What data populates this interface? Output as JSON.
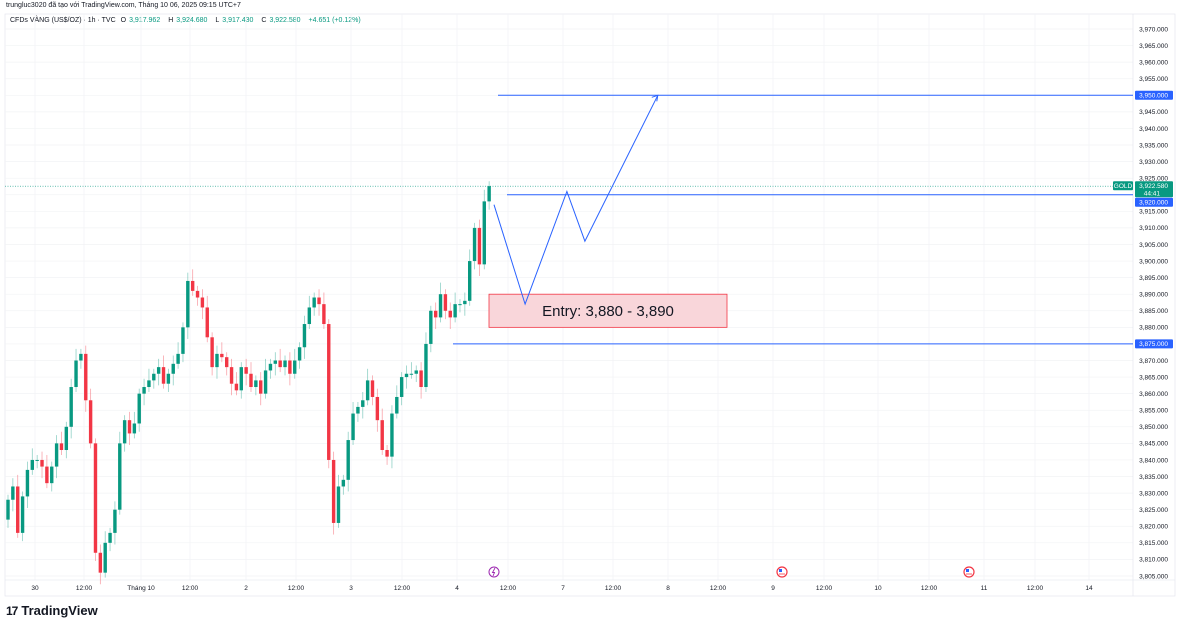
{
  "header": {
    "credit": "trungluc3020 đã tạo với TradingView.com, Tháng 10 06, 2025 09:15 UTC+7",
    "symbol": "CFDs VÀNG (US$/OZ) · 1h · TVC",
    "open_label": "O",
    "open": "3,917.962",
    "high_label": "H",
    "high": "3,924.680",
    "low_label": "L",
    "low": "3,917.430",
    "close_label": "C",
    "close": "3,922.580",
    "change": "+4.651 (+0.12%)"
  },
  "colors": {
    "up": "#089981",
    "down": "#f23645",
    "drawing": "#2962ff",
    "entry_fill": "#f9d6da",
    "entry_border": "#f23645"
  },
  "chart_data": {
    "type": "candlestick",
    "ylim": [
      3803,
      3973
    ],
    "y_ticks": [
      "3,805.000",
      "3,810.000",
      "3,815.000",
      "3,820.000",
      "3,825.000",
      "3,830.000",
      "3,835.000",
      "3,840.000",
      "3,845.000",
      "3,850.000",
      "3,855.000",
      "3,860.000",
      "3,865.000",
      "3,870.000",
      "3,875.000",
      "3,880.000",
      "3,885.000",
      "3,890.000",
      "3,895.000",
      "3,900.000",
      "3,905.000",
      "3,910.000",
      "3,915.000",
      "3,920.000",
      "3,925.000",
      "3,930.000",
      "3,935.000",
      "3,940.000",
      "3,945.000",
      "3,950.000",
      "3,955.000",
      "3,960.000",
      "3,965.000",
      "3,970.000"
    ],
    "x_ticks": [
      "30",
      "12:00",
      "Tháng 10",
      "12:00",
      "2",
      "12:00",
      "3",
      "12:00",
      "4",
      "12:00",
      "7",
      "12:00",
      "8",
      "12:00",
      "9",
      "12:00",
      "10",
      "12:00",
      "11",
      "12:00",
      "14"
    ],
    "first_open": 3822,
    "closes": [
      3828,
      3832,
      3818,
      3829,
      3837,
      3840,
      3840,
      3838,
      3833,
      3838,
      3845,
      3843,
      3850,
      3862,
      3870,
      3872,
      3858,
      3845,
      3812,
      3806,
      3815,
      3818,
      3825,
      3845,
      3852,
      3848,
      3851,
      3860,
      3862,
      3864,
      3866,
      3868,
      3863,
      3866,
      3869,
      3872,
      3880,
      3894,
      3891,
      3889,
      3886,
      3877,
      3868,
      3872,
      3871,
      3868,
      3863,
      3861,
      3868,
      3866,
      3862,
      3864,
      3860,
      3867,
      3869,
      3870,
      3868,
      3870,
      3866,
      3870,
      3874,
      3881,
      3886,
      3889,
      3887,
      3881,
      3840,
      3821,
      3832,
      3834,
      3846,
      3854,
      3856,
      3858,
      3864,
      3859,
      3852,
      3843,
      3841,
      3854,
      3859,
      3865,
      3866,
      3866,
      3867,
      3862,
      3875,
      3885,
      3883,
      3890,
      3885,
      3883,
      3887,
      3887,
      3888,
      3900,
      3910,
      3899,
      3918,
      3922.58
    ],
    "last_price": "3,922.580",
    "countdown": "44:41",
    "symbol_tag": "GOLD",
    "horizontal_lines": [
      {
        "price": 3950,
        "label": "3,950.000"
      },
      {
        "price": 3920,
        "label": "3,920.000"
      },
      {
        "price": 3875,
        "label": "3,875.000"
      }
    ],
    "path_drawing": [
      [
        100,
        3917
      ],
      [
        106.4,
        3887
      ],
      [
        115,
        3921
      ],
      [
        118.7,
        3906
      ],
      [
        133.7,
        3950
      ]
    ],
    "entry_zone": {
      "low": 3880,
      "high": 3890,
      "label": "Entry: 3,880 - 3,890"
    },
    "events": [
      "lightning-icon",
      "us-flag-icon",
      "us-flag-icon"
    ]
  },
  "footer": {
    "brand": "TradingView"
  }
}
